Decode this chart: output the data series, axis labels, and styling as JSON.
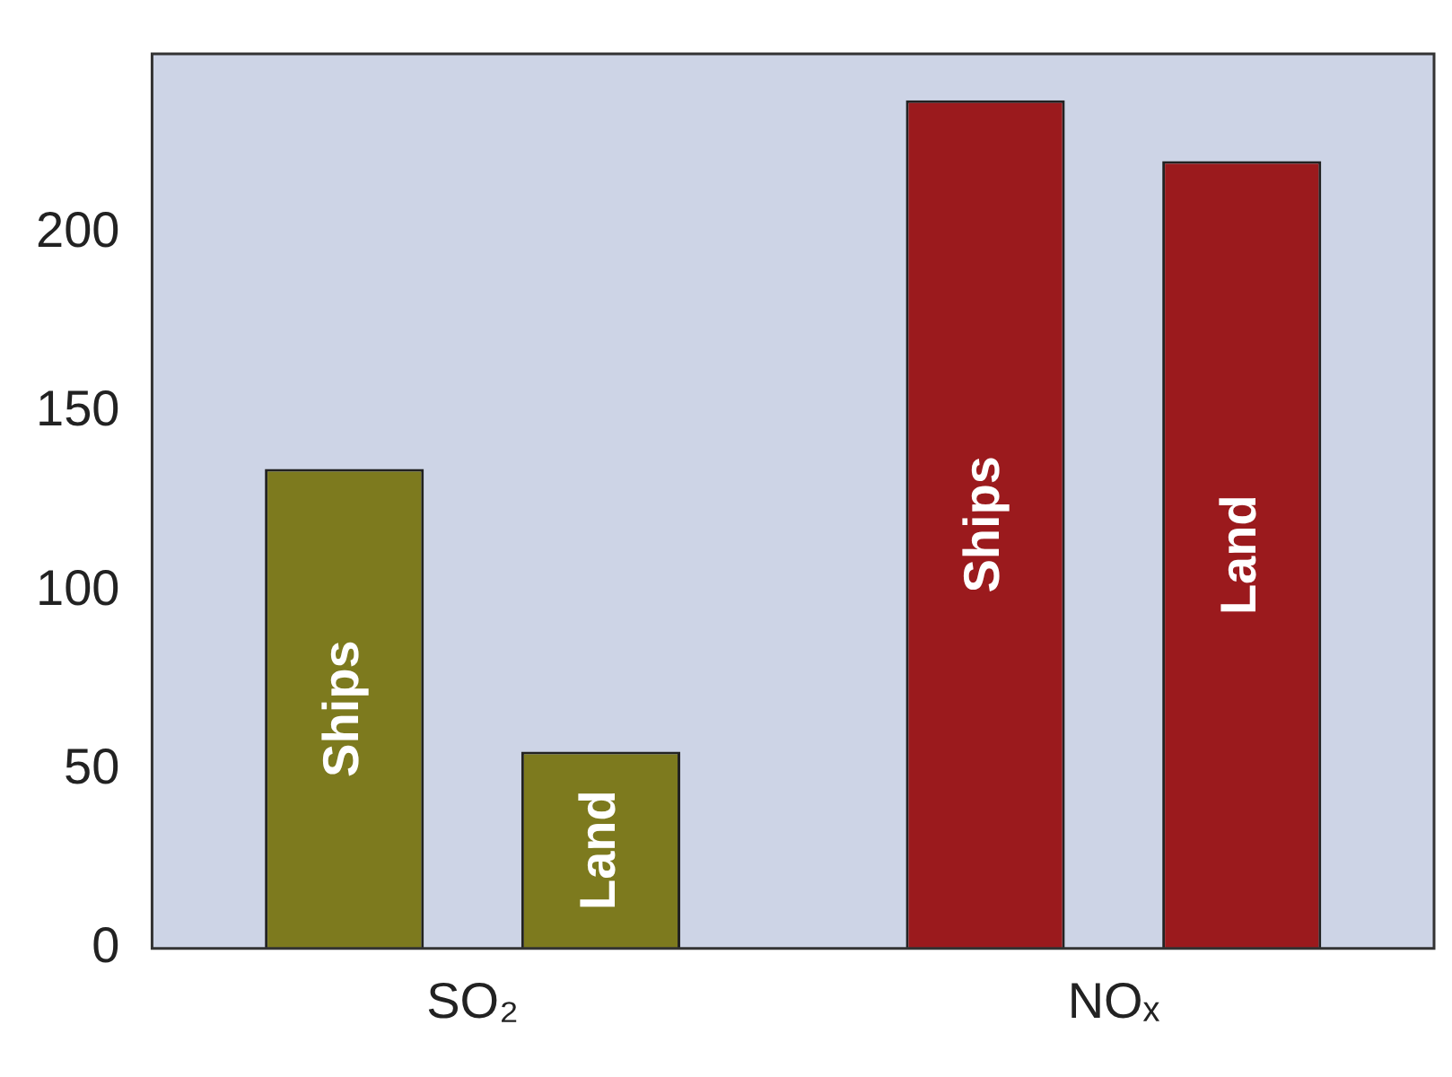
{
  "chart_data": {
    "type": "bar",
    "categories": [
      "SO₂",
      "NOₓ"
    ],
    "series": [
      {
        "name": "Ships",
        "colors": [
          "#7d7a1e",
          "#9b1a1d"
        ],
        "values": [
          134,
          237
        ]
      },
      {
        "name": "Land",
        "colors": [
          "#7d7a1e",
          "#9b1a1d"
        ],
        "values": [
          55,
          220
        ]
      }
    ],
    "ylim": [
      0,
      250
    ],
    "yticks": [
      0,
      50,
      100,
      150,
      200
    ],
    "grid": false,
    "legend": false
  }
}
